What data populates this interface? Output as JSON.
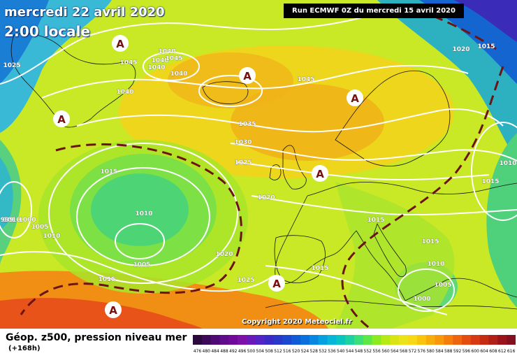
{
  "header": {
    "date": "mercredi 22 avril 2020",
    "time": "2:00 locale",
    "run": "Run ECMWF 0Z du mercredi 15 avril 2020"
  },
  "map": {
    "highs": [
      "A",
      "A",
      "A",
      "A",
      "A",
      "A",
      "A"
    ],
    "isobar_labels": [
      "1025",
      "1045",
      "1040",
      "1040",
      "1045",
      "1040",
      "1040",
      "1040",
      "1045",
      "1020",
      "1015",
      "1035",
      "1030",
      "1025",
      "1020",
      "1015",
      "1010",
      "1015",
      "1010",
      "1005",
      "1010",
      "1005",
      "1000",
      "1020",
      "1015",
      "1025",
      "1015",
      "1015",
      "1010",
      "1005",
      "1000",
      "1010",
      "1015",
      "999"
    ],
    "copyright": "Copyright 2020 Meteociel.fr"
  },
  "legend": {
    "title": "Géop. z500, pression niveau mer",
    "subtitle": "(+168h)",
    "scale_values": [
      "476",
      "480",
      "484",
      "488",
      "492",
      "496",
      "500",
      "504",
      "508",
      "512",
      "516",
      "520",
      "524",
      "528",
      "532",
      "536",
      "540",
      "544",
      "548",
      "552",
      "556",
      "560",
      "564",
      "568",
      "572",
      "576",
      "580",
      "584",
      "588",
      "592",
      "596",
      "600",
      "604",
      "608",
      "612",
      "616"
    ],
    "scale_colors": [
      "#2a0a3c",
      "#3d0a5a",
      "#4e0b74",
      "#5f0c8a",
      "#6f0a9a",
      "#7d10a8",
      "#6a19b9",
      "#5423c5",
      "#3b2bc6",
      "#2a38c9",
      "#1b48cf",
      "#105bd6",
      "#0a71dc",
      "#0688e0",
      "#06a0e0",
      "#06b6d8",
      "#07c6c0",
      "#1dd2a0",
      "#3adf78",
      "#5ee848",
      "#8ceb1e",
      "#b5ea14",
      "#d8e414",
      "#ece21a",
      "#f6d816",
      "#f8c40e",
      "#f8ae0a",
      "#f7970a",
      "#f47d0c",
      "#ef640f",
      "#e54c10",
      "#d73a12",
      "#c52c14",
      "#b01f18",
      "#9a141c",
      "#84101f"
    ]
  }
}
